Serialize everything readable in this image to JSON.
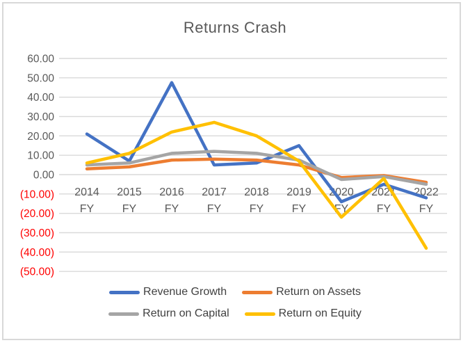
{
  "window": {
    "background": "#ffffff",
    "border_color": "#d8d8d8"
  },
  "chart_data": {
    "type": "line",
    "title": "Returns Crash",
    "categories": [
      "2014",
      "2015",
      "2016",
      "2017",
      "2018",
      "2019",
      "2020",
      "2021",
      "2022"
    ],
    "category_sublabel": "FY",
    "series": [
      {
        "name": "Revenue Growth",
        "color": "#4472C4",
        "values": [
          21,
          7,
          47.5,
          5,
          6,
          15,
          -14,
          -5,
          -12
        ]
      },
      {
        "name": "Return on Assets",
        "color": "#ED7D31",
        "values": [
          3,
          4,
          7.5,
          8,
          7.5,
          5,
          -1.5,
          -0.5,
          -4
        ]
      },
      {
        "name": "Return on Capital",
        "color": "#A5A5A5",
        "values": [
          5,
          6,
          11,
          12,
          11,
          7.5,
          -2.5,
          -1,
          -5
        ]
      },
      {
        "name": "Return on Equity",
        "color": "#FFC000",
        "values": [
          6,
          11,
          22,
          27,
          20,
          7,
          -22,
          -2,
          -38
        ]
      }
    ],
    "y_axis": {
      "min": -50,
      "max": 60,
      "step": 10,
      "label_color": "#595959",
      "negative_color": "#FF0000",
      "ticks": [
        {
          "label": "60.00",
          "value": 60
        },
        {
          "label": "50.00",
          "value": 50
        },
        {
          "label": "40.00",
          "value": 40
        },
        {
          "label": "30.00",
          "value": 30
        },
        {
          "label": "20.00",
          "value": 20
        },
        {
          "label": "10.00",
          "value": 10
        },
        {
          "label": "0.00",
          "value": 0
        },
        {
          "label": "(10.00)",
          "value": -10
        },
        {
          "label": "(20.00)",
          "value": -20
        },
        {
          "label": "(30.00)",
          "value": -30
        },
        {
          "label": "(40.00)",
          "value": -40
        },
        {
          "label": "(50.00)",
          "value": -50
        }
      ]
    },
    "x_axis": {
      "label_color": "#595959"
    },
    "grid": true,
    "grid_color": "#d9d9d9",
    "legend_position": "bottom"
  }
}
